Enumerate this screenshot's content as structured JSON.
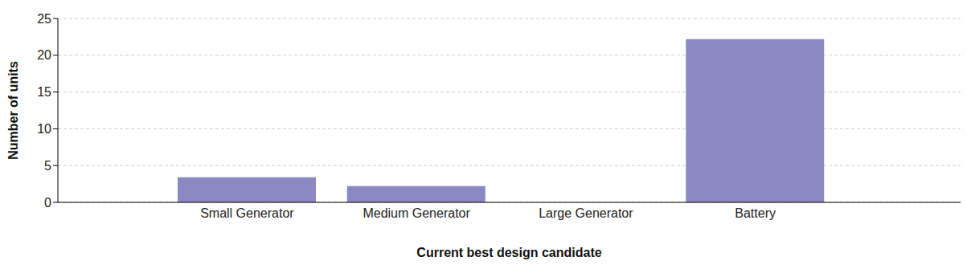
{
  "chart_data": {
    "type": "bar",
    "categories": [
      "Small Generator",
      "Medium Generator",
      "Large Generator",
      "Battery"
    ],
    "values": [
      3.4,
      2.2,
      0,
      22.2
    ],
    "color": "#8c88c2",
    "xlabel": "Current best design candidate",
    "ylabel": "Number of units",
    "ylim": [
      0,
      25
    ],
    "yticks": [
      0,
      5,
      10,
      15,
      20,
      25
    ],
    "grid": true
  }
}
